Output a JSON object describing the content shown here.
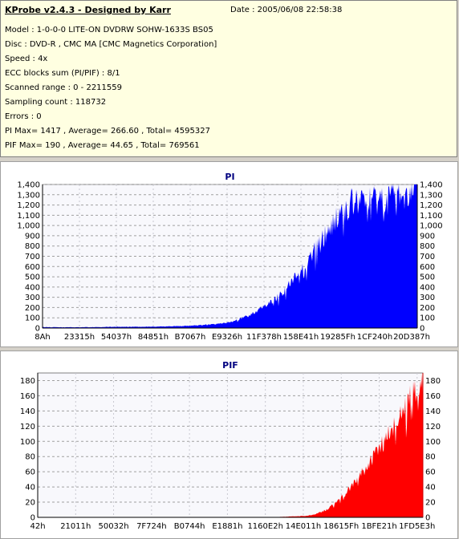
{
  "info": {
    "title": "KProbe v2.4.3 - Designed by Karr",
    "date": "Date : 2005/06/08 22:58:38",
    "lines": [
      "Model : 1-0-0-0 LITE-ON DVDRW SOHW-1633S BS05",
      "Disc : DVD-R , CMC MA [CMC Magnetics Corporation]",
      "Speed : 4x",
      "ECC blocks sum (PI/PIF) : 8/1",
      "Scanned range : 0 - 2211559",
      "Sampling count : 118732",
      "Errors : 0",
      "PI Max= 1417 , Average= 266.60 , Total= 4595327",
      "PIF Max= 190 , Average= 44.65 , Total= 769561"
    ]
  },
  "colors": {
    "pi": "#0000ff",
    "pif": "#ff0000",
    "plot_bg": "#f8f8fc",
    "grid": "#a0a0a0",
    "title": "#000080"
  },
  "chart_data": [
    {
      "type": "area",
      "title": "PI",
      "ylim": [
        0,
        1400
      ],
      "y_ticks": [
        "0",
        "100",
        "200",
        "300",
        "400",
        "500",
        "600",
        "700",
        "800",
        "900",
        "1,000",
        "1,100",
        "1,200",
        "1,300",
        "1,400"
      ],
      "x_ticks": [
        "8Ah",
        "23315h",
        "54037h",
        "84851h",
        "B7067h",
        "E9326h",
        "11F378h",
        "158E41h",
        "19285Fh",
        "1CF240h",
        "20D387h"
      ],
      "y_right_axis": true,
      "x": [
        0,
        0.05,
        0.1,
        0.15,
        0.2,
        0.25,
        0.3,
        0.35,
        0.4,
        0.45,
        0.5,
        0.55,
        0.6,
        0.62,
        0.65,
        0.68,
        0.7,
        0.72,
        0.74,
        0.76,
        0.78,
        0.8,
        0.82,
        0.84,
        0.86,
        0.88,
        0.9,
        0.92,
        0.94,
        0.96,
        0.98,
        1.0
      ],
      "values": [
        10,
        8,
        8,
        10,
        12,
        12,
        14,
        18,
        25,
        35,
        55,
        120,
        230,
        280,
        380,
        520,
        620,
        720,
        820,
        930,
        1050,
        1130,
        1200,
        1230,
        1220,
        1250,
        1260,
        1280,
        1300,
        1310,
        1350,
        1417
      ]
    },
    {
      "type": "area",
      "title": "PIF",
      "ylim": [
        0,
        190
      ],
      "y_ticks": [
        "0",
        "20",
        "40",
        "60",
        "80",
        "100",
        "120",
        "140",
        "160",
        "180"
      ],
      "x_ticks": [
        "42h",
        "21011h",
        "50032h",
        "7F724h",
        "B0744h",
        "E1881h",
        "1160E2h",
        "14E011h",
        "18615Fh",
        "1BFE21h",
        "1FD5E3h"
      ],
      "y_right_axis": true,
      "x": [
        0,
        0.1,
        0.2,
        0.3,
        0.4,
        0.5,
        0.6,
        0.65,
        0.7,
        0.72,
        0.74,
        0.76,
        0.78,
        0.8,
        0.82,
        0.84,
        0.86,
        0.88,
        0.9,
        0.92,
        0.94,
        0.96,
        0.98,
        1.0
      ],
      "values": [
        0,
        0,
        0,
        0,
        0,
        0,
        0,
        1,
        2,
        4,
        8,
        14,
        22,
        32,
        45,
        58,
        70,
        85,
        100,
        115,
        130,
        148,
        170,
        190
      ]
    }
  ]
}
